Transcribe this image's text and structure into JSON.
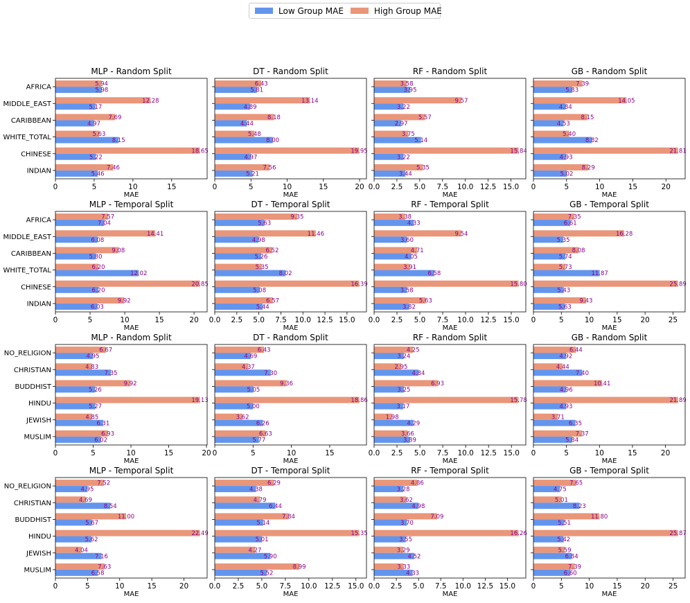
{
  "legend": {
    "low_label": "Low Group MAE",
    "high_label": "High Group MAE"
  },
  "colors": {
    "low": "#6495ED",
    "high": "#E9967A",
    "label_text": "#8B008B"
  },
  "chart_data": [
    {
      "type": "bar",
      "title": "MLP - Random Split",
      "xlabel": "MAE",
      "ylabel": "",
      "categories": [
        "AFRICA",
        "MIDDLE_EAST",
        "CARIBBEAN",
        "WHITE_TOTAL",
        "CHINESE",
        "INDIAN"
      ],
      "series": [
        {
          "name": "Low Group MAE",
          "values": [
            5.98,
            5.17,
            4.97,
            8.15,
            5.22,
            5.46
          ]
        },
        {
          "name": "High Group MAE",
          "values": [
            5.94,
            12.28,
            7.69,
            5.63,
            18.65,
            7.46
          ]
        }
      ],
      "xlim": [
        0,
        19.58
      ],
      "xticks": [
        0,
        5,
        10,
        15
      ],
      "tick_labels": [
        "0",
        "5",
        "10",
        "15"
      ]
    },
    {
      "type": "bar",
      "title": "DT - Random Split",
      "xlabel": "MAE",
      "ylabel": "",
      "categories": [
        "AFRICA",
        "MIDDLE_EAST",
        "CARIBBEAN",
        "WHITE_TOTAL",
        "CHINESE",
        "INDIAN"
      ],
      "series": [
        {
          "name": "Low Group MAE",
          "values": [
            5.81,
            4.89,
            4.44,
            8.0,
            4.97,
            5.21
          ]
        },
        {
          "name": "High Group MAE",
          "values": [
            6.43,
            13.14,
            8.18,
            5.48,
            19.95,
            7.56
          ]
        }
      ],
      "xlim": [
        0,
        20.95
      ],
      "xticks": [
        0,
        5,
        10,
        15,
        20
      ],
      "tick_labels": [
        "0",
        "5",
        "10",
        "15",
        "20"
      ]
    },
    {
      "type": "bar",
      "title": "RF - Random Split",
      "xlabel": "MAE",
      "ylabel": "",
      "categories": [
        "AFRICA",
        "MIDDLE_EAST",
        "CARIBBEAN",
        "WHITE_TOTAL",
        "CHINESE",
        "INDIAN"
      ],
      "series": [
        {
          "name": "Low Group MAE",
          "values": [
            3.95,
            3.22,
            2.97,
            5.14,
            3.22,
            3.44
          ]
        },
        {
          "name": "High Group MAE",
          "values": [
            3.58,
            9.57,
            5.57,
            3.75,
            15.84,
            5.35
          ]
        }
      ],
      "xlim": [
        0,
        16.63
      ],
      "xticks": [
        0,
        2.5,
        5,
        7.5,
        10,
        12.5,
        15
      ],
      "tick_labels": [
        "0.0",
        "2.5",
        "5.0",
        "7.5",
        "10.0",
        "12.5",
        "15.0"
      ]
    },
    {
      "type": "bar",
      "title": "GB - Random Split",
      "xlabel": "MAE",
      "ylabel": "",
      "categories": [
        "AFRICA",
        "MIDDLE_EAST",
        "CARIBBEAN",
        "WHITE_TOTAL",
        "CHINESE",
        "INDIAN"
      ],
      "series": [
        {
          "name": "Low Group MAE",
          "values": [
            5.83,
            4.84,
            4.53,
            8.82,
            4.93,
            5.02
          ]
        },
        {
          "name": "High Group MAE",
          "values": [
            7.39,
            14.05,
            8.15,
            5.4,
            21.81,
            8.29
          ]
        }
      ],
      "xlim": [
        0,
        22.9
      ],
      "xticks": [
        0,
        5,
        10,
        15,
        20
      ],
      "tick_labels": [
        "0",
        "5",
        "10",
        "15",
        "20"
      ]
    },
    {
      "type": "bar",
      "title": "MLP - Temporal Split",
      "xlabel": "MAE",
      "ylabel": "",
      "categories": [
        "AFRICA",
        "MIDDLE_EAST",
        "CARIBBEAN",
        "WHITE_TOTAL",
        "CHINESE",
        "INDIAN"
      ],
      "series": [
        {
          "name": "Low Group MAE",
          "values": [
            7.04,
            6.08,
            5.8,
            12.02,
            6.2,
            6.03
          ]
        },
        {
          "name": "High Group MAE",
          "values": [
            7.57,
            14.41,
            9.08,
            6.2,
            20.85,
            9.92
          ]
        }
      ],
      "xlim": [
        0,
        21.89
      ],
      "xticks": [
        0,
        5,
        10,
        15,
        20
      ],
      "tick_labels": [
        "0",
        "5",
        "10",
        "15",
        "20"
      ]
    },
    {
      "type": "bar",
      "title": "DT - Temporal Split",
      "xlabel": "MAE",
      "ylabel": "",
      "categories": [
        "AFRICA",
        "MIDDLE_EAST",
        "CARIBBEAN",
        "WHITE_TOTAL",
        "CHINESE",
        "INDIAN"
      ],
      "series": [
        {
          "name": "Low Group MAE",
          "values": [
            5.63,
            4.98,
            5.26,
            8.02,
            5.08,
            5.44
          ]
        },
        {
          "name": "High Group MAE",
          "values": [
            9.35,
            11.46,
            6.52,
            5.35,
            16.39,
            6.57
          ]
        }
      ],
      "xlim": [
        0,
        17.21
      ],
      "xticks": [
        0,
        2.5,
        5,
        7.5,
        10,
        12.5,
        15
      ],
      "tick_labels": [
        "0.0",
        "2.5",
        "5.0",
        "7.5",
        "10.0",
        "12.5",
        "15.0"
      ]
    },
    {
      "type": "bar",
      "title": "RF - Temporal Split",
      "xlabel": "MAE",
      "ylabel": "",
      "categories": [
        "AFRICA",
        "MIDDLE_EAST",
        "CARIBBEAN",
        "WHITE_TOTAL",
        "CHINESE",
        "INDIAN"
      ],
      "series": [
        {
          "name": "Low Group MAE",
          "values": [
            4.33,
            3.6,
            4.05,
            6.58,
            3.58,
            3.82
          ]
        },
        {
          "name": "High Group MAE",
          "values": [
            3.38,
            9.54,
            4.71,
            3.91,
            15.8,
            5.63
          ]
        }
      ],
      "xlim": [
        0,
        16.59
      ],
      "xticks": [
        0,
        2.5,
        5,
        7.5,
        10,
        12.5,
        15
      ],
      "tick_labels": [
        "0.0",
        "2.5",
        "5.0",
        "7.5",
        "10.0",
        "12.5",
        "15.0"
      ]
    },
    {
      "type": "bar",
      "title": "GB - Temporal Split",
      "xlabel": "MAE",
      "ylabel": "",
      "categories": [
        "AFRICA",
        "MIDDLE_EAST",
        "CARIBBEAN",
        "WHITE_TOTAL",
        "CHINESE",
        "INDIAN"
      ],
      "series": [
        {
          "name": "Low Group MAE",
          "values": [
            6.61,
            5.35,
            5.74,
            11.87,
            5.43,
            5.63
          ]
        },
        {
          "name": "High Group MAE",
          "values": [
            7.35,
            16.28,
            8.08,
            5.73,
            25.89,
            9.43
          ]
        }
      ],
      "xlim": [
        0,
        27.18
      ],
      "xticks": [
        0,
        5,
        10,
        15,
        20,
        25
      ],
      "tick_labels": [
        "0",
        "5",
        "10",
        "15",
        "20",
        "25"
      ]
    },
    {
      "type": "bar",
      "title": "MLP - Random Split",
      "xlabel": "MAE",
      "ylabel": "",
      "categories": [
        "NO_RELIGION",
        "CHRISTIAN",
        "BUDDHIST",
        "HINDU",
        "JEWISH",
        "MUSLIM"
      ],
      "series": [
        {
          "name": "Low Group MAE",
          "values": [
            4.95,
            7.35,
            5.26,
            5.27,
            6.31,
            6.02
          ]
        },
        {
          "name": "High Group MAE",
          "values": [
            6.67,
            4.83,
            9.92,
            19.13,
            4.85,
            6.93
          ]
        }
      ],
      "xlim": [
        0,
        20.09
      ],
      "xticks": [
        0,
        5,
        10,
        15,
        20
      ],
      "tick_labels": [
        "0",
        "5",
        "10",
        "15",
        "20"
      ]
    },
    {
      "type": "bar",
      "title": "DT - Random Split",
      "xlabel": "MAE",
      "ylabel": "",
      "categories": [
        "NO_RELIGION",
        "CHRISTIAN",
        "BUDDHIST",
        "HINDU",
        "JEWISH",
        "MUSLIM"
      ],
      "series": [
        {
          "name": "Low Group MAE",
          "values": [
            4.69,
            7.3,
            5.05,
            5.0,
            6.26,
            5.77
          ]
        },
        {
          "name": "High Group MAE",
          "values": [
            6.43,
            4.37,
            9.36,
            18.86,
            3.62,
            6.63
          ]
        }
      ],
      "xlim": [
        0,
        19.8
      ],
      "xticks": [
        0,
        5,
        10,
        15
      ],
      "tick_labels": [
        "0",
        "5",
        "10",
        "15"
      ]
    },
    {
      "type": "bar",
      "title": "RF - Random Split",
      "xlabel": "MAE",
      "ylabel": "",
      "categories": [
        "NO_RELIGION",
        "CHRISTIAN",
        "BUDDHIST",
        "HINDU",
        "JEWISH",
        "MUSLIM"
      ],
      "series": [
        {
          "name": "Low Group MAE",
          "values": [
            3.24,
            4.84,
            3.25,
            3.17,
            4.29,
            3.89
          ]
        },
        {
          "name": "High Group MAE",
          "values": [
            4.25,
            2.95,
            6.93,
            15.78,
            1.98,
            3.66
          ]
        }
      ],
      "xlim": [
        0,
        16.57
      ],
      "xticks": [
        0,
        2.5,
        5,
        7.5,
        10,
        12.5,
        15
      ],
      "tick_labels": [
        "0.0",
        "2.5",
        "5.0",
        "7.5",
        "10.0",
        "12.5",
        "15.0"
      ]
    },
    {
      "type": "bar",
      "title": "GB - Random Split",
      "xlabel": "MAE",
      "ylabel": "",
      "categories": [
        "NO_RELIGION",
        "CHRISTIAN",
        "BUDDHIST",
        "HINDU",
        "JEWISH",
        "MUSLIM"
      ],
      "series": [
        {
          "name": "Low Group MAE",
          "values": [
            4.92,
            7.4,
            4.96,
            4.93,
            6.35,
            5.84
          ]
        },
        {
          "name": "High Group MAE",
          "values": [
            6.44,
            4.44,
            10.41,
            21.89,
            3.71,
            7.37
          ]
        }
      ],
      "xlim": [
        0,
        22.98
      ],
      "xticks": [
        0,
        5,
        10,
        15,
        20
      ],
      "tick_labels": [
        "0",
        "5",
        "10",
        "15",
        "20"
      ]
    },
    {
      "type": "bar",
      "title": "MLP - Temporal Split",
      "xlabel": "MAE",
      "ylabel": "",
      "categories": [
        "NO_RELIGION",
        "CHRISTIAN",
        "BUDDHIST",
        "HINDU",
        "JEWISH",
        "MUSLIM"
      ],
      "series": [
        {
          "name": "Low Group MAE",
          "values": [
            4.95,
            8.54,
            5.67,
            5.62,
            7.16,
            6.58
          ]
        },
        {
          "name": "High Group MAE",
          "values": [
            7.52,
            4.69,
            11.0,
            22.49,
            4.04,
            7.63
          ]
        }
      ],
      "xlim": [
        0,
        23.61
      ],
      "xticks": [
        0,
        5,
        10,
        15,
        20
      ],
      "tick_labels": [
        "0",
        "5",
        "10",
        "15",
        "20"
      ]
    },
    {
      "type": "bar",
      "title": "DT - Temporal Split",
      "xlabel": "MAE",
      "ylabel": "",
      "categories": [
        "NO_RELIGION",
        "CHRISTIAN",
        "BUDDHIST",
        "HINDU",
        "JEWISH",
        "MUSLIM"
      ],
      "series": [
        {
          "name": "Low Group MAE",
          "values": [
            4.38,
            6.44,
            5.14,
            5.01,
            5.9,
            5.52
          ]
        },
        {
          "name": "High Group MAE",
          "values": [
            6.29,
            4.79,
            7.84,
            15.35,
            4.27,
            8.99
          ]
        }
      ],
      "xlim": [
        0,
        16.12
      ],
      "xticks": [
        0,
        2.5,
        5,
        7.5,
        10,
        12.5,
        15
      ],
      "tick_labels": [
        "0.0",
        "2.5",
        "5.0",
        "7.5",
        "10.0",
        "12.5",
        "15.0"
      ]
    },
    {
      "type": "bar",
      "title": "RF - Temporal Split",
      "xlabel": "MAE",
      "ylabel": "",
      "categories": [
        "NO_RELIGION",
        "CHRISTIAN",
        "BUDDHIST",
        "HINDU",
        "JEWISH",
        "MUSLIM"
      ],
      "series": [
        {
          "name": "Low Group MAE",
          "values": [
            3.28,
            4.98,
            3.7,
            3.55,
            4.52,
            4.33
          ]
        },
        {
          "name": "High Group MAE",
          "values": [
            4.86,
            3.62,
            7.09,
            16.26,
            3.29,
            3.33
          ]
        }
      ],
      "xlim": [
        0,
        17.07
      ],
      "xticks": [
        0,
        2.5,
        5,
        7.5,
        10,
        12.5,
        15
      ],
      "tick_labels": [
        "0.0",
        "2.5",
        "5.0",
        "7.5",
        "10.0",
        "12.5",
        "15.0"
      ]
    },
    {
      "type": "bar",
      "title": "GB - Temporal Split",
      "xlabel": "MAE",
      "ylabel": "",
      "categories": [
        "NO_RELIGION",
        "CHRISTIAN",
        "BUDDHIST",
        "HINDU",
        "JEWISH",
        "MUSLIM"
      ],
      "series": [
        {
          "name": "Low Group MAE",
          "values": [
            4.75,
            8.23,
            5.51,
            5.42,
            6.84,
            6.6
          ]
        },
        {
          "name": "High Group MAE",
          "values": [
            7.65,
            5.01,
            11.8,
            25.87,
            5.59,
            7.39
          ]
        }
      ],
      "xlim": [
        0,
        27.16
      ],
      "xticks": [
        0,
        5,
        10,
        15,
        20,
        25
      ],
      "tick_labels": [
        "0",
        "5",
        "10",
        "15",
        "20",
        "25"
      ]
    }
  ]
}
